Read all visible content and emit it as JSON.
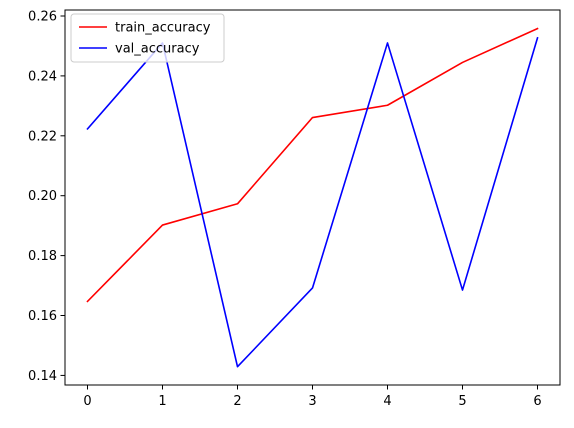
{
  "chart_data": {
    "type": "line",
    "title": "",
    "xlabel": "",
    "ylabel": "",
    "x": [
      0,
      1,
      2,
      3,
      4,
      5,
      6
    ],
    "xlim": [
      -0.3,
      6.3
    ],
    "ylim": [
      0.1368,
      0.262
    ],
    "xticks": [
      0,
      1,
      2,
      3,
      4,
      5,
      6
    ],
    "yticks": [
      0.14,
      0.16,
      0.18,
      0.2,
      0.22,
      0.24,
      0.26
    ],
    "grid": false,
    "legend_position": "top-left",
    "series": [
      {
        "name": "train_accuracy",
        "color": "#ff0000",
        "values": [
          0.1647,
          0.1902,
          0.1973,
          0.2261,
          0.2302,
          0.2445,
          0.2558
        ]
      },
      {
        "name": "val_accuracy",
        "color": "#0000ff",
        "values": [
          0.2223,
          0.251,
          0.1429,
          0.1692,
          0.251,
          0.1685,
          0.2527
        ]
      }
    ]
  }
}
